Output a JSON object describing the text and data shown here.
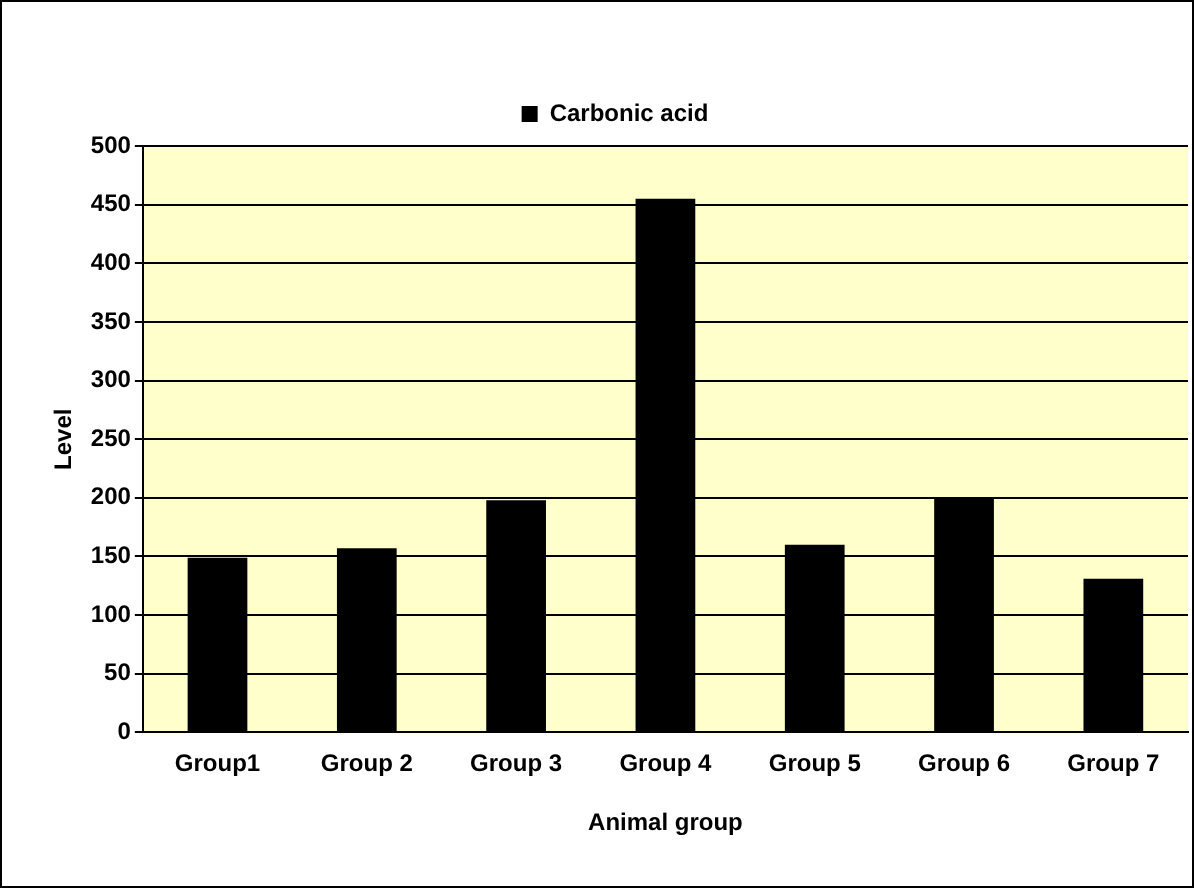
{
  "chart_data": {
    "type": "bar",
    "xlabel": "Animal group",
    "ylabel": "Level",
    "categories": [
      "Group1",
      "Group 2",
      "Group 3",
      "Group 4",
      "Group 5",
      "Group 6",
      "Group 7"
    ],
    "series": [
      {
        "name": "Carbonic acid",
        "color": "#000000",
        "values": [
          149,
          157,
          198,
          455,
          160,
          200,
          131
        ]
      }
    ],
    "ylim": [
      0,
      500
    ],
    "yticks": [
      0,
      50,
      100,
      150,
      200,
      250,
      300,
      350,
      400,
      450,
      500
    ],
    "grid": "y",
    "legend": "top"
  }
}
